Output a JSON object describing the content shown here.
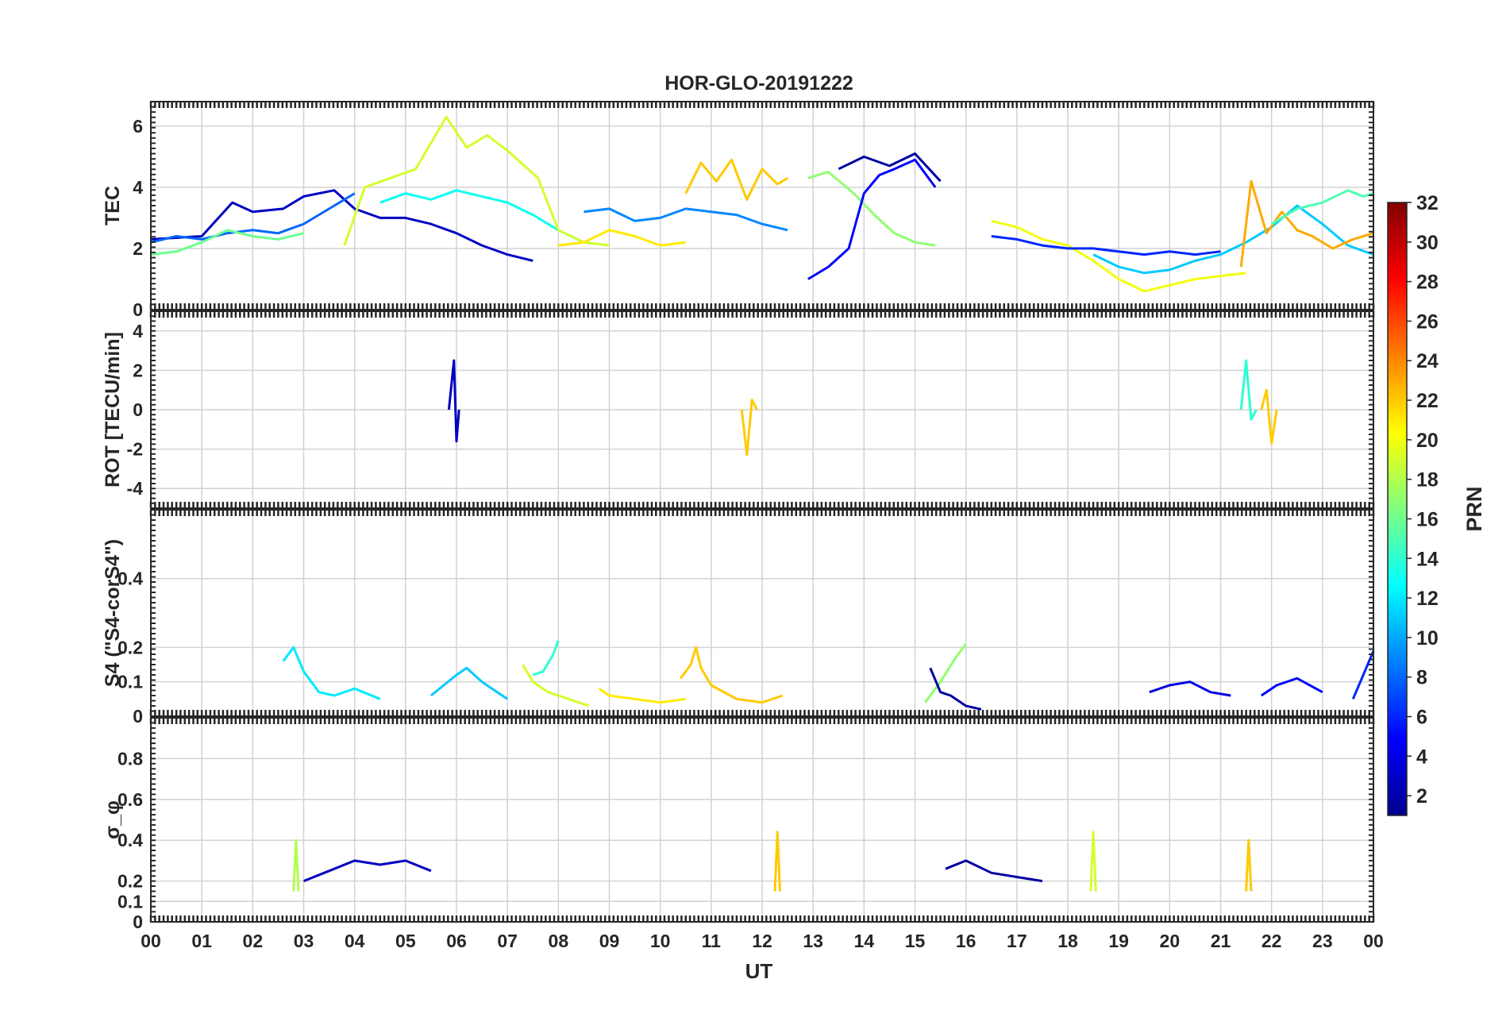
{
  "chart_data": {
    "type": "line",
    "title": "HOR-GLO-20191222",
    "xlabel": "UT",
    "xlim": [
      0,
      24
    ],
    "x_tick_labels": [
      "00",
      "01",
      "02",
      "03",
      "04",
      "05",
      "06",
      "07",
      "08",
      "09",
      "10",
      "11",
      "12",
      "13",
      "14",
      "15",
      "16",
      "17",
      "18",
      "19",
      "20",
      "21",
      "22",
      "23",
      "00"
    ],
    "colorbar": {
      "label": "PRN",
      "range": [
        1,
        32
      ],
      "tick_labels": [
        "2",
        "4",
        "6",
        "8",
        "10",
        "12",
        "14",
        "16",
        "18",
        "20",
        "22",
        "24",
        "26",
        "28",
        "30",
        "32"
      ]
    },
    "panels": [
      {
        "id": "tec",
        "ylabel": "TEC",
        "ylim": [
          0,
          6.8
        ],
        "yticks": [
          "0",
          "2",
          "4",
          "6"
        ],
        "series": [
          {
            "prn": 3,
            "name": "PRN 3",
            "x": [
              0,
              1,
              1.6,
              2,
              2.6,
              3,
              3.6,
              4,
              4.5,
              5,
              5.5,
              6,
              6.5,
              7,
              7.5
            ],
            "y": [
              2.3,
              2.4,
              3.5,
              3.2,
              3.3,
              3.7,
              3.9,
              3.3,
              3,
              3,
              2.8,
              2.5,
              2.1,
              1.8,
              1.6
            ]
          },
          {
            "prn": 8,
            "name": "PRN 8",
            "x": [
              0,
              0.5,
              1,
              1.5,
              2,
              2.5,
              3,
              3.5,
              4
            ],
            "y": [
              2.2,
              2.4,
              2.3,
              2.5,
              2.6,
              2.5,
              2.8,
              3.3,
              3.8
            ]
          },
          {
            "prn": 13,
            "name": "PRN 13",
            "x": [
              4.5,
              5,
              5.5,
              6,
              6.5,
              7,
              7.5,
              8,
              8.5
            ],
            "y": [
              3.5,
              3.8,
              3.6,
              3.9,
              3.7,
              3.5,
              3.1,
              2.6,
              2.2
            ]
          },
          {
            "prn": 19,
            "name": "PRN 19",
            "x": [
              3.8,
              4.2,
              4.7,
              5.2,
              5.8,
              6.2,
              6.6,
              7,
              7.6,
              8,
              8.5,
              9
            ],
            "y": [
              2.1,
              4,
              4.3,
              4.6,
              6.3,
              5.3,
              5.7,
              5.2,
              4.3,
              2.6,
              2.2,
              2.1
            ]
          },
          {
            "prn": 16,
            "name": "PRN 16",
            "x": [
              0,
              0.5,
              1,
              1.5,
              2,
              2.5,
              3
            ],
            "y": [
              1.8,
              1.9,
              2.2,
              2.6,
              2.4,
              2.3,
              2.5
            ]
          },
          {
            "prn": 9,
            "name": "PRN 9",
            "x": [
              8.5,
              9,
              9.5,
              10,
              10.5,
              11,
              11.5,
              12,
              12.5
            ],
            "y": [
              3.2,
              3.3,
              2.9,
              3,
              3.3,
              3.2,
              3.1,
              2.8,
              2.6
            ]
          },
          {
            "prn": 21,
            "name": "PRN 21",
            "x": [
              8,
              8.5,
              9,
              9.5,
              10,
              10.5
            ],
            "y": [
              2.1,
              2.2,
              2.6,
              2.4,
              2.1,
              2.2
            ]
          },
          {
            "prn": 22,
            "name": "PRN 22",
            "x": [
              10.5,
              10.8,
              11.1,
              11.4,
              11.7,
              12,
              12.3,
              12.5
            ],
            "y": [
              3.8,
              4.8,
              4.2,
              4.9,
              3.6,
              4.6,
              4.1,
              4.3
            ]
          },
          {
            "prn": 17,
            "name": "PRN 17",
            "x": [
              12.9,
              13.3,
              13.8,
              14.2,
              14.6,
              15,
              15.4
            ],
            "y": [
              4.3,
              4.5,
              3.8,
              3.1,
              2.5,
              2.2,
              2.1
            ]
          },
          {
            "prn": 5,
            "name": "PRN 5",
            "x": [
              12.9,
              13.3,
              13.7,
              14,
              14.3,
              14.6,
              15,
              15.4
            ],
            "y": [
              1,
              1.4,
              2,
              3.8,
              4.4,
              4.6,
              4.9,
              4
            ]
          },
          {
            "prn": 2,
            "name": "PRN 2",
            "x": [
              13.5,
              14,
              14.5,
              15,
              15.5
            ],
            "y": [
              4.6,
              5,
              4.7,
              5.1,
              4.2
            ]
          },
          {
            "prn": 20,
            "name": "PRN 20",
            "x": [
              16.5,
              17,
              17.5,
              18,
              18.5,
              19,
              19.5,
              20,
              20.5,
              21,
              21.5
            ],
            "y": [
              2.9,
              2.7,
              2.3,
              2.1,
              1.6,
              1,
              0.6,
              0.8,
              1,
              1.1,
              1.2
            ]
          },
          {
            "prn": 11,
            "name": "PRN 11",
            "x": [
              18.5,
              19,
              19.5,
              20,
              20.5,
              21,
              21.5,
              22,
              22.5,
              23,
              23.5,
              24
            ],
            "y": [
              1.8,
              1.4,
              1.2,
              1.3,
              1.6,
              1.8,
              2.2,
              2.7,
              3.4,
              2.8,
              2.1,
              1.8
            ]
          },
          {
            "prn": 23,
            "name": "PRN 23",
            "x": [
              21.4,
              21.6,
              21.9,
              22.2,
              22.5,
              22.8,
              23.2,
              23.6,
              24
            ],
            "y": [
              1.4,
              4.2,
              2.5,
              3.2,
              2.6,
              2.4,
              2,
              2.3,
              2.5
            ]
          },
          {
            "prn": 15,
            "name": "PRN 15",
            "x": [
              22,
              22.5,
              23,
              23.5,
              23.8,
              24
            ],
            "y": [
              2.8,
              3.3,
              3.5,
              3.9,
              3.7,
              3.8
            ]
          },
          {
            "prn": 6,
            "name": "PRN 6",
            "x": [
              16.5,
              17,
              17.5,
              18,
              18.5,
              19,
              19.5,
              20,
              20.5,
              21
            ],
            "y": [
              2.4,
              2.3,
              2.1,
              2,
              2,
              1.9,
              1.8,
              1.9,
              1.8,
              1.9
            ]
          }
        ]
      },
      {
        "id": "rot",
        "ylabel": "ROT [TECU/min]",
        "ylim": [
          -5,
          5
        ],
        "yticks": [
          "-4",
          "-2",
          "0",
          "2",
          "4"
        ],
        "series": [
          {
            "prn": 3,
            "name": "PRN 3",
            "x": [
              5.85,
              5.95,
              6,
              6.05
            ],
            "y": [
              0,
              2.5,
              -1.6,
              0
            ]
          },
          {
            "prn": 22,
            "name": "PRN 22",
            "x": [
              11.6,
              11.7,
              11.8,
              11.9
            ],
            "y": [
              0,
              -2.3,
              0.5,
              0
            ]
          },
          {
            "prn": 14,
            "name": "PRN 14",
            "x": [
              21.4,
              21.5,
              21.6,
              21.7
            ],
            "y": [
              0,
              2.5,
              -0.5,
              0
            ]
          },
          {
            "prn": 22,
            "name": "PRN 22",
            "x": [
              21.8,
              21.9,
              22,
              22.1
            ],
            "y": [
              0,
              1,
              -1.7,
              0
            ]
          }
        ]
      },
      {
        "id": "s4",
        "ylabel": "S4 (\"S4-corS4\")",
        "ylim": [
          0,
          0.6
        ],
        "yticks": [
          "0",
          "0.1",
          "0.2",
          "0.4"
        ],
        "series": [
          {
            "prn": 12,
            "name": "PRN 12",
            "x": [
              2.6,
              2.8,
              3,
              3.3,
              3.6,
              4,
              4.5
            ],
            "y": [
              0.16,
              0.2,
              0.13,
              0.07,
              0.06,
              0.08,
              0.05
            ]
          },
          {
            "prn": 11,
            "name": "PRN 11",
            "x": [
              5.5,
              6,
              6.2,
              6.5,
              6.8,
              7
            ],
            "y": [
              0.06,
              0.12,
              0.14,
              0.1,
              0.07,
              0.05
            ]
          },
          {
            "prn": 19,
            "name": "PRN 19",
            "x": [
              7.3,
              7.5,
              7.8,
              8.2,
              8.6
            ],
            "y": [
              0.15,
              0.1,
              0.07,
              0.05,
              0.03
            ]
          },
          {
            "prn": 14,
            "name": "PRN 14",
            "x": [
              7.5,
              7.7,
              7.9,
              8
            ],
            "y": [
              0.12,
              0.13,
              0.18,
              0.22
            ]
          },
          {
            "prn": 21,
            "name": "PRN 21",
            "x": [
              8.8,
              9,
              9.5,
              10,
              10.5
            ],
            "y": [
              0.08,
              0.06,
              0.05,
              0.04,
              0.05
            ]
          },
          {
            "prn": 22,
            "name": "PRN 22",
            "x": [
              10.4,
              10.6,
              10.7,
              10.8,
              11,
              11.5,
              12,
              12.4
            ],
            "y": [
              0.11,
              0.15,
              0.2,
              0.14,
              0.09,
              0.05,
              0.04,
              0.06
            ]
          },
          {
            "prn": 17,
            "name": "PRN 17",
            "x": [
              15.2,
              15.5,
              15.8,
              16
            ],
            "y": [
              0.04,
              0.1,
              0.17,
              0.21
            ]
          },
          {
            "prn": 2,
            "name": "PRN 2",
            "x": [
              15.3,
              15.5,
              15.7,
              16,
              16.3
            ],
            "y": [
              0.14,
              0.07,
              0.06,
              0.03,
              0.02
            ]
          },
          {
            "prn": 4,
            "name": "PRN 4",
            "x": [
              19.6,
              20,
              20.4,
              20.8,
              21.2
            ],
            "y": [
              0.07,
              0.09,
              0.1,
              0.07,
              0.06
            ]
          },
          {
            "prn": 5,
            "name": "PRN 5",
            "x": [
              21.8,
              22.1,
              22.5,
              23
            ],
            "y": [
              0.06,
              0.09,
              0.11,
              0.07
            ]
          },
          {
            "prn": 6,
            "name": "PRN 6",
            "x": [
              23.6,
              23.8,
              24
            ],
            "y": [
              0.05,
              0.12,
              0.19
            ]
          }
        ]
      },
      {
        "id": "sigma",
        "ylabel": "σ_φ",
        "ylim": [
          0,
          1
        ],
        "yticks": [
          "0",
          "0.1",
          "0.2",
          "0.4",
          "0.6",
          "0.8"
        ],
        "series": [
          {
            "prn": 3,
            "name": "PRN 3",
            "x": [
              3,
              3.5,
              4,
              4.5,
              5,
              5.5
            ],
            "y": [
              0.2,
              0.25,
              0.3,
              0.28,
              0.3,
              0.25
            ]
          },
          {
            "prn": 2,
            "name": "PRN 2",
            "x": [
              15.6,
              16,
              16.5,
              17,
              17.5
            ],
            "y": [
              0.26,
              0.3,
              0.24,
              0.22,
              0.2
            ]
          },
          {
            "prn": 18,
            "name": "PRN 18",
            "x": [
              2.8,
              2.85,
              2.9
            ],
            "y": [
              0.15,
              0.4,
              0.15
            ]
          },
          {
            "prn": 22,
            "name": "PRN 22",
            "x": [
              12.25,
              12.3,
              12.35
            ],
            "y": [
              0.15,
              0.44,
              0.15
            ]
          },
          {
            "prn": 22,
            "name": "PRN 22",
            "x": [
              21.5,
              21.55,
              21.6
            ],
            "y": [
              0.15,
              0.4,
              0.15
            ]
          },
          {
            "prn": 19,
            "name": "PRN 19",
            "x": [
              18.45,
              18.5,
              18.55
            ],
            "y": [
              0.15,
              0.44,
              0.15
            ]
          }
        ]
      }
    ]
  }
}
